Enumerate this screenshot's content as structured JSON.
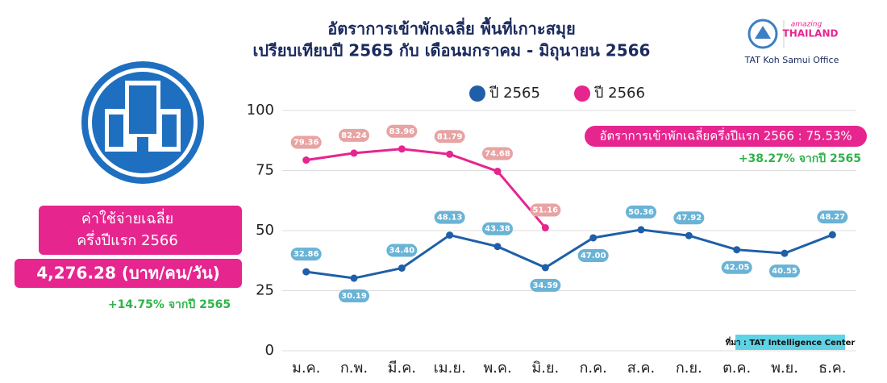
{
  "chart_data": {
    "type": "line",
    "title": [
      "อัตราการเข้าพักเฉลี่ย พื้นที่เกาะสมุย",
      "เปรียบเทียบปี 2565 กับ เดือนมกราคม - มิถุนายน 2566"
    ],
    "categories": [
      "ม.ค.",
      "ก.พ.",
      "มี.ค.",
      "เม.ย.",
      "พ.ค.",
      "มิ.ย.",
      "ก.ค.",
      "ส.ค.",
      "ก.ย.",
      "ต.ค.",
      "พ.ย.",
      "ธ.ค."
    ],
    "series": [
      {
        "name": "ปี 2565",
        "color": "#1f5fa8",
        "label_color": "#6ab3d6",
        "values": [
          32.86,
          30.19,
          34.4,
          48.13,
          43.38,
          34.59,
          47.0,
          50.36,
          47.92,
          42.05,
          40.55,
          48.27
        ],
        "value_labels": [
          "32.86",
          "30.19",
          "34.40",
          "48.13",
          "43.38",
          "34.59",
          "47.00",
          "50.36",
          "47.92",
          "42.05",
          "40.55",
          "48.27"
        ]
      },
      {
        "name": "ปี 2566",
        "color": "#e6258f",
        "label_color": "#e8a3a3",
        "values": [
          79.36,
          82.24,
          83.96,
          81.79,
          74.68,
          51.16,
          null,
          null,
          null,
          null,
          null,
          null
        ],
        "value_labels": [
          "79.36",
          "82.24",
          "83.96",
          "81.79",
          "74.68",
          "51.16",
          null,
          null,
          null,
          null,
          null,
          null
        ]
      }
    ],
    "ylim": [
      0,
      100
    ],
    "yticks": [
      0,
      25,
      50,
      75,
      100
    ],
    "grid": true,
    "annotations": [
      "อัตราการเข้าพักเฉลี่ยครึ่งปีแรก 2566 : 75.53%",
      "+38.27% จากปี 2565"
    ],
    "source": "ที่มา : TAT Intelligence Center"
  },
  "panel": {
    "label": [
      "ค่าใช้จ่ายเฉลี่ย",
      "ครึ่งปีแรก 2566"
    ],
    "value": "4,276.28 (บาท/คน/วัน)",
    "change": "+14.75% จากปี 2565"
  },
  "logo": {
    "tagline": "amazing",
    "brand": "THAILAND",
    "office": "TAT Koh Samui Office"
  }
}
